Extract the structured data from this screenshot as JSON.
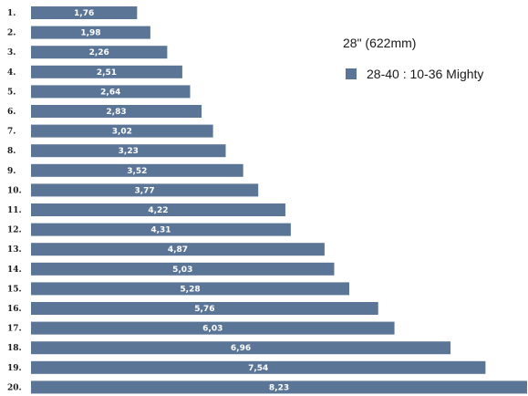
{
  "chart_data": {
    "type": "bar",
    "orientation": "horizontal",
    "title": "",
    "xlabel": "",
    "ylabel": "",
    "categories": [
      "1.",
      "2.",
      "3.",
      "4.",
      "5.",
      "6.",
      "7.",
      "8.",
      "9.",
      "10.",
      "11.",
      "12.",
      "13.",
      "14.",
      "15.",
      "16.",
      "17.",
      "18.",
      "19.",
      "20."
    ],
    "series": [
      {
        "name": "28-40 : 10-36  Mighty",
        "values": [
          1.76,
          1.98,
          2.26,
          2.51,
          2.64,
          2.83,
          3.02,
          3.23,
          3.52,
          3.77,
          4.22,
          4.31,
          4.87,
          5.03,
          5.28,
          5.76,
          6.03,
          6.96,
          7.54,
          8.23
        ]
      }
    ],
    "value_labels": [
      "1,76",
      "1,98",
      "2,26",
      "2,51",
      "2,64",
      "2,83",
      "3,02",
      "3,23",
      "3,52",
      "3,77",
      "4,22",
      "4,31",
      "4,87",
      "5,03",
      "5,28",
      "5,76",
      "6,03",
      "6,96",
      "7,54",
      "8,23"
    ],
    "xlim": [
      0,
      8.23
    ],
    "grid": false,
    "legend_position": "top-right",
    "legend_title": "28\" (622mm)",
    "bar_color": "#5b7597"
  }
}
